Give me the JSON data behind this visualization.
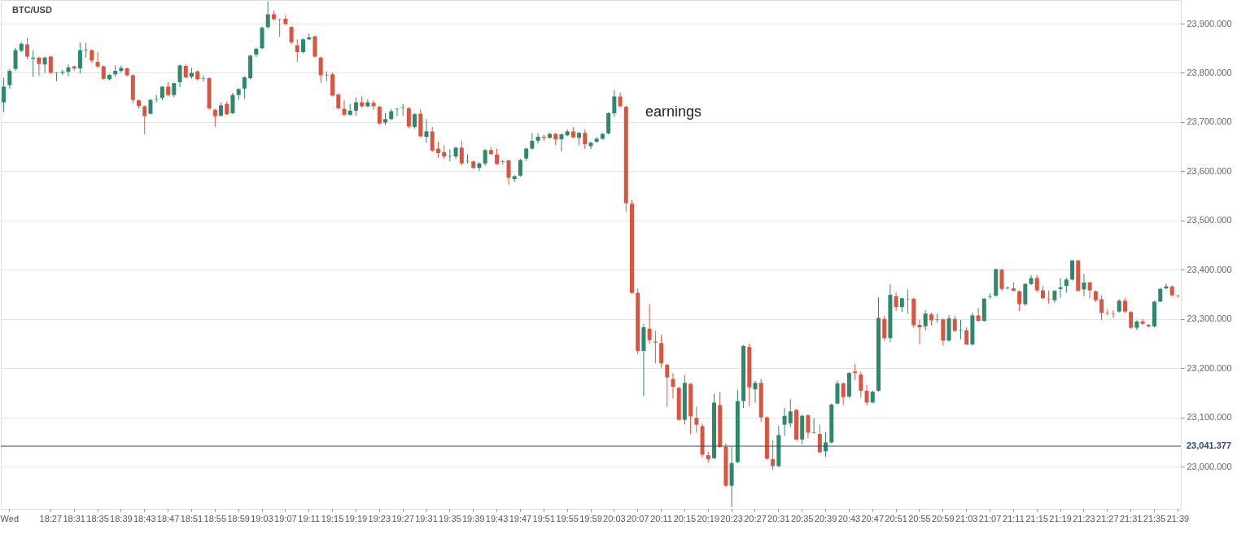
{
  "chart_data": {
    "type": "candlestick",
    "title": "BTC/USD",
    "annotations": [
      "earnings"
    ],
    "categories": [
      null,
      "Wed",
      null,
      null,
      null,
      null,
      null,
      null,
      "18:27",
      null,
      null,
      null,
      "18:31",
      null,
      null,
      null,
      "18:35",
      null,
      null,
      null,
      "18:39",
      null,
      null,
      null,
      "18:43",
      null,
      null,
      null,
      "18:47",
      null,
      null,
      null,
      "18:51",
      null,
      null,
      null,
      "18:55",
      null,
      null,
      null,
      "18:59",
      null,
      null,
      null,
      "19:03",
      null,
      null,
      null,
      "19:07",
      null,
      null,
      null,
      "19:11",
      null,
      null,
      null,
      "19:15",
      null,
      null,
      null,
      "19:19",
      null,
      null,
      null,
      "19:23",
      null,
      null,
      null,
      "19:27",
      null,
      null,
      null,
      "19:31",
      null,
      null,
      null,
      "19:35",
      null,
      null,
      null,
      "19:39",
      null,
      null,
      null,
      "19:43",
      null,
      null,
      null,
      "19:47",
      null,
      null,
      null,
      "19:51",
      null,
      null,
      null,
      "19:55",
      null,
      null,
      null,
      "19:59",
      null,
      null,
      null,
      "20:03",
      null,
      null,
      null,
      "20:07",
      null,
      null,
      null,
      "20:11",
      null,
      null,
      null,
      "20:15",
      null,
      null,
      null,
      "20:19",
      null,
      null,
      null,
      "20:23",
      null,
      null,
      null,
      "20:27",
      null,
      null,
      null,
      "20:31",
      null,
      null,
      null,
      "20:35",
      null,
      null,
      null,
      "20:39",
      null,
      null,
      null,
      "20:43",
      null,
      null,
      null,
      "20:47",
      null,
      null,
      null,
      "20:51",
      null,
      null,
      null,
      "20:55",
      null,
      null,
      null,
      "20:59",
      null,
      null,
      null,
      "21:03",
      null,
      null,
      null,
      "21:07",
      null,
      null,
      null,
      "21:11",
      null,
      null,
      null,
      "21:15",
      null,
      null,
      null,
      "21:19",
      null,
      null,
      null,
      "21:23",
      null,
      null,
      null,
      "21:27",
      null,
      null,
      null,
      "21:31",
      null,
      null,
      null,
      "21:35",
      null,
      null,
      null,
      "21:39"
    ],
    "ohlc": [
      [
        23740,
        23790,
        23720,
        23772
      ],
      [
        23775,
        23808,
        23768,
        23804
      ],
      [
        23808,
        23851,
        23804,
        23846
      ],
      [
        23845,
        23863,
        23842,
        23859
      ],
      [
        23858,
        23870,
        23828,
        23833
      ],
      [
        23829,
        23846,
        23792,
        23831
      ],
      [
        23831,
        23833,
        23794,
        23818
      ],
      [
        23817,
        23833,
        23800,
        23831
      ],
      [
        23833,
        23835,
        23798,
        23800
      ],
      [
        23800,
        23801,
        23783,
        23801
      ],
      [
        23800,
        23806,
        23796,
        23802
      ],
      [
        23802,
        23817,
        23793,
        23811
      ],
      [
        23813,
        23815,
        23804,
        23809
      ],
      [
        23809,
        23862,
        23799,
        23846
      ],
      [
        23846,
        23861,
        23831,
        23847
      ],
      [
        23846,
        23848,
        23820,
        23825
      ],
      [
        23822,
        23842,
        23810,
        23813
      ],
      [
        23813,
        23815,
        23786,
        23788
      ],
      [
        23787,
        23797,
        23785,
        23796
      ],
      [
        23797,
        23815,
        23792,
        23804
      ],
      [
        23804,
        23815,
        23800,
        23810
      ],
      [
        23809,
        23811,
        23793,
        23795
      ],
      [
        23795,
        23797,
        23738,
        23745
      ],
      [
        23744,
        23746,
        23728,
        23733
      ],
      [
        23732,
        23734,
        23675,
        23712
      ],
      [
        23717,
        23747,
        23715,
        23745
      ],
      [
        23746,
        23755,
        23740,
        23747
      ],
      [
        23749,
        23773,
        23744,
        23772
      ],
      [
        23772,
        23781,
        23753,
        23755
      ],
      [
        23755,
        23780,
        23750,
        23779
      ],
      [
        23781,
        23817,
        23771,
        23815
      ],
      [
        23814,
        23818,
        23789,
        23791
      ],
      [
        23792,
        23810,
        23788,
        23800
      ],
      [
        23803,
        23805,
        23785,
        23787
      ],
      [
        23788,
        23795,
        23782,
        23789
      ],
      [
        23789,
        23791,
        23725,
        23728
      ],
      [
        23725,
        23727,
        23690,
        23712
      ],
      [
        23713,
        23740,
        23711,
        23734
      ],
      [
        23737,
        23742,
        23714,
        23716
      ],
      [
        23718,
        23760,
        23716,
        23755
      ],
      [
        23755,
        23769,
        23745,
        23767
      ],
      [
        23768,
        23793,
        23747,
        23791
      ],
      [
        23789,
        23837,
        23787,
        23835
      ],
      [
        23837,
        23851,
        23832,
        23849
      ],
      [
        23850,
        23894,
        23848,
        23892
      ],
      [
        23893,
        23945,
        23889,
        23919
      ],
      [
        23919,
        23926,
        23907,
        23909
      ],
      [
        23909,
        23910,
        23873,
        23908
      ],
      [
        23910,
        23917,
        23897,
        23899
      ],
      [
        23893,
        23895,
        23858,
        23862
      ],
      [
        23856,
        23868,
        23822,
        23842
      ],
      [
        23842,
        23870,
        23840,
        23868
      ],
      [
        23868,
        23880,
        23866,
        23872
      ],
      [
        23874,
        23876,
        23831,
        23833
      ],
      [
        23831,
        23833,
        23780,
        23795
      ],
      [
        23795,
        23803,
        23783,
        23796
      ],
      [
        23797,
        23801,
        23752,
        23754
      ],
      [
        23756,
        23758,
        23726,
        23728
      ],
      [
        23727,
        23745,
        23712,
        23715
      ],
      [
        23715,
        23737,
        23713,
        23723
      ],
      [
        23723,
        23750,
        23713,
        23740
      ],
      [
        23740,
        23752,
        23730,
        23732
      ],
      [
        23732,
        23746,
        23730,
        23740
      ],
      [
        23739,
        23744,
        23725,
        23732
      ],
      [
        23731,
        23733,
        23695,
        23697
      ],
      [
        23699,
        23718,
        23694,
        23706
      ],
      [
        23706,
        23727,
        23704,
        23722
      ],
      [
        23726,
        23728,
        23712,
        23727
      ],
      [
        23728,
        23737,
        23712,
        23729
      ],
      [
        23728,
        23731,
        23688,
        23691
      ],
      [
        23690,
        23718,
        23687,
        23716
      ],
      [
        23717,
        23726,
        23669,
        23671
      ],
      [
        23670,
        23706,
        23658,
        23681
      ],
      [
        23681,
        23690,
        23640,
        23642
      ],
      [
        23646,
        23660,
        23627,
        23637
      ],
      [
        23639,
        23653,
        23625,
        23630
      ],
      [
        23630,
        23645,
        23620,
        23631
      ],
      [
        23630,
        23650,
        23625,
        23648
      ],
      [
        23648,
        23662,
        23612,
        23616
      ],
      [
        23620,
        23635,
        23616,
        23621
      ],
      [
        23620,
        23622,
        23603,
        23607
      ],
      [
        23607,
        23618,
        23601,
        23616
      ],
      [
        23616,
        23645,
        23611,
        23643
      ],
      [
        23643,
        23649,
        23633,
        23635
      ],
      [
        23634,
        23646,
        23613,
        23615
      ],
      [
        23619,
        23623,
        23614,
        23620
      ],
      [
        23622,
        23624,
        23573,
        23587
      ],
      [
        23584,
        23592,
        23578,
        23590
      ],
      [
        23591,
        23625,
        23589,
        23623
      ],
      [
        23626,
        23648,
        23621,
        23646
      ],
      [
        23646,
        23678,
        23644,
        23662
      ],
      [
        23662,
        23677,
        23656,
        23670
      ],
      [
        23670,
        23674,
        23662,
        23668
      ],
      [
        23668,
        23678,
        23666,
        23676
      ],
      [
        23676,
        23678,
        23653,
        23665
      ],
      [
        23665,
        23677,
        23640,
        23675
      ],
      [
        23673,
        23685,
        23671,
        23681
      ],
      [
        23681,
        23690,
        23667,
        23669
      ],
      [
        23668,
        23680,
        23653,
        23678
      ],
      [
        23678,
        23685,
        23645,
        23655
      ],
      [
        23651,
        23660,
        23645,
        23658
      ],
      [
        23660,
        23670,
        23658,
        23666
      ],
      [
        23666,
        23678,
        23664,
        23676
      ],
      [
        23677,
        23720,
        23675,
        23718
      ],
      [
        23718,
        23765,
        23710,
        23752
      ],
      [
        23752,
        23760,
        23730,
        23732
      ],
      [
        23731,
        23733,
        23518,
        23535
      ],
      [
        23534,
        23542,
        23351,
        23353
      ],
      [
        23353,
        23362,
        23228,
        23235
      ],
      [
        23235,
        23290,
        23143,
        23283
      ],
      [
        23280,
        23330,
        23249,
        23257
      ],
      [
        23254,
        23276,
        23210,
        23252
      ],
      [
        23251,
        23268,
        23201,
        23210
      ],
      [
        23207,
        23209,
        23121,
        23181
      ],
      [
        23178,
        23190,
        23138,
        23162
      ],
      [
        23160,
        23162,
        23093,
        23095
      ],
      [
        23095,
        23186,
        23086,
        23170
      ],
      [
        23168,
        23170,
        23066,
        23102
      ],
      [
        23099,
        23122,
        23069,
        23085
      ],
      [
        23082,
        23088,
        23018,
        23024
      ],
      [
        23023,
        23030,
        23008,
        23015
      ],
      [
        23017,
        23148,
        23015,
        23130
      ],
      [
        23125,
        23152,
        23038,
        23040
      ],
      [
        23040,
        23047,
        22959,
        22961
      ],
      [
        22961,
        23040,
        22918,
        23007
      ],
      [
        23009,
        23156,
        23007,
        23133
      ],
      [
        23133,
        23247,
        23119,
        23245
      ],
      [
        23243,
        23250,
        23123,
        23161
      ],
      [
        23157,
        23174,
        23130,
        23170
      ],
      [
        23170,
        23178,
        23091,
        23100
      ],
      [
        23100,
        23102,
        23014,
        23016
      ],
      [
        23015,
        23054,
        22993,
        23001
      ],
      [
        23001,
        23083,
        22999,
        23064
      ],
      [
        23085,
        23119,
        23062,
        23103
      ],
      [
        23088,
        23137,
        23080,
        23112
      ],
      [
        23115,
        23117,
        23053,
        23055
      ],
      [
        23055,
        23106,
        23045,
        23103
      ],
      [
        23104,
        23107,
        23058,
        23069
      ],
      [
        23068,
        23098,
        23067,
        23069
      ],
      [
        23066,
        23085,
        23027,
        23029
      ],
      [
        23031,
        23070,
        23019,
        23049
      ],
      [
        23049,
        23128,
        23047,
        23126
      ],
      [
        23128,
        23175,
        23126,
        23169
      ],
      [
        23169,
        23171,
        23125,
        23141
      ],
      [
        23142,
        23192,
        23140,
        23190
      ],
      [
        23193,
        23208,
        23176,
        23190
      ],
      [
        23187,
        23193,
        23140,
        23154
      ],
      [
        23154,
        23166,
        23124,
        23130
      ],
      [
        23130,
        23154,
        23129,
        23152
      ],
      [
        23154,
        23344,
        23152,
        23302
      ],
      [
        23300,
        23306,
        23256,
        23261
      ],
      [
        23261,
        23370,
        23252,
        23349
      ],
      [
        23346,
        23354,
        23316,
        23324
      ],
      [
        23324,
        23343,
        23314,
        23342
      ],
      [
        23340,
        23360,
        23311,
        23339
      ],
      [
        23341,
        23343,
        23282,
        23287
      ],
      [
        23288,
        23298,
        23248,
        23283
      ],
      [
        23285,
        23318,
        23276,
        23311
      ],
      [
        23309,
        23313,
        23287,
        23297
      ],
      [
        23298,
        23311,
        23292,
        23299
      ],
      [
        23299,
        23301,
        23246,
        23256
      ],
      [
        23256,
        23308,
        23254,
        23301
      ],
      [
        23300,
        23306,
        23273,
        23276
      ],
      [
        23277,
        23298,
        23259,
        23278
      ],
      [
        23277,
        23283,
        23247,
        23248
      ],
      [
        23248,
        23313,
        23246,
        23307
      ],
      [
        23307,
        23322,
        23294,
        23296
      ],
      [
        23296,
        23343,
        23294,
        23341
      ],
      [
        23345,
        23352,
        23341,
        23346
      ],
      [
        23347,
        23402,
        23345,
        23401
      ],
      [
        23400,
        23402,
        23357,
        23361
      ],
      [
        23362,
        23366,
        23360,
        23363
      ],
      [
        23362,
        23374,
        23356,
        23357
      ],
      [
        23356,
        23358,
        23316,
        23330
      ],
      [
        23330,
        23373,
        23326,
        23371
      ],
      [
        23371,
        23389,
        23369,
        23383
      ],
      [
        23383,
        23389,
        23354,
        23358
      ],
      [
        23358,
        23367,
        23340,
        23342
      ],
      [
        23341,
        23358,
        23331,
        23340
      ],
      [
        23338,
        23359,
        23333,
        23357
      ],
      [
        23361,
        23383,
        23343,
        23364
      ],
      [
        23367,
        23384,
        23353,
        23380
      ],
      [
        23380,
        23419,
        23378,
        23419
      ],
      [
        23419,
        23419,
        23357,
        23357
      ],
      [
        23360,
        23391,
        23346,
        23374
      ],
      [
        23374,
        23376,
        23342,
        23358
      ],
      [
        23356,
        23358,
        23335,
        23338
      ],
      [
        23340,
        23348,
        23298,
        23312
      ],
      [
        23312,
        23320,
        23308,
        23311
      ],
      [
        23311,
        23317,
        23302,
        23310
      ],
      [
        23315,
        23340,
        23313,
        23337
      ],
      [
        23337,
        23343,
        23312,
        23315
      ],
      [
        23314,
        23316,
        23280,
        23282
      ],
      [
        23282,
        23297,
        23277,
        23295
      ],
      [
        23295,
        23300,
        23288,
        23290
      ],
      [
        23288,
        23290,
        23283,
        23285
      ],
      [
        23285,
        23337,
        23283,
        23335
      ],
      [
        23335,
        23363,
        23335,
        23361
      ],
      [
        23362,
        23372,
        23360,
        23366
      ],
      [
        23366,
        23368,
        23346,
        23348
      ],
      [
        23347,
        23349,
        23343,
        23346
      ]
    ],
    "colors": [
      "#2b8a6e",
      "#2b8a6e",
      "#2b8a6e",
      "#2b8a6e",
      "#d9553f",
      "#2b8a6e",
      "#d9553f",
      "#2b8a6e",
      "#d9553f",
      "#2b8a6e",
      "#2b8a6e",
      "#2b8a6e",
      "#d9553f",
      "#2b8a6e",
      "#2b8a6e",
      "#d9553f",
      "#d9553f",
      "#d9553f",
      "#2b8a6e",
      "#2b8a6e",
      "#2b8a6e",
      "#d9553f",
      "#d9553f",
      "#d9553f",
      "#d9553f",
      "#2b8a6e",
      "#2b8a6e",
      "#2b8a6e",
      "#d9553f",
      "#2b8a6e",
      "#2b8a6e",
      "#d9553f",
      "#2b8a6e",
      "#d9553f",
      "#2b8a6e",
      "#d9553f",
      "#d9553f",
      "#2b8a6e",
      "#d9553f",
      "#2b8a6e",
      "#2b8a6e",
      "#2b8a6e",
      "#2b8a6e",
      "#2b8a6e",
      "#2b8a6e",
      "#2b8a6e",
      "#d9553f",
      "#d9553f",
      "#d9553f",
      "#d9553f",
      "#d9553f",
      "#2b8a6e",
      "#2b8a6e",
      "#d9553f",
      "#d9553f",
      "#2b8a6e",
      "#d9553f",
      "#d9553f",
      "#d9553f",
      "#2b8a6e",
      "#2b8a6e",
      "#d9553f",
      "#2b8a6e",
      "#d9553f",
      "#d9553f",
      "#2b8a6e",
      "#2b8a6e",
      "#2b8a6e",
      "#2b8a6e",
      "#d9553f",
      "#2b8a6e",
      "#d9553f",
      "#2b8a6e",
      "#d9553f",
      "#d9553f",
      "#d9553f",
      "#2b8a6e",
      "#2b8a6e",
      "#d9553f",
      "#2b8a6e",
      "#d9553f",
      "#2b8a6e",
      "#2b8a6e",
      "#d9553f",
      "#d9553f",
      "#2b8a6e",
      "#d9553f",
      "#2b8a6e",
      "#2b8a6e",
      "#2b8a6e",
      "#2b8a6e",
      "#2b8a6e",
      "#d9553f",
      "#2b8a6e",
      "#d9553f",
      "#2b8a6e",
      "#2b8a6e",
      "#d9553f",
      "#2b8a6e",
      "#d9553f",
      "#2b8a6e",
      "#2b8a6e",
      "#2b8a6e",
      "#2b8a6e",
      "#2b8a6e",
      "#d9553f",
      "#d9553f",
      "#d9553f",
      "#d9553f",
      "#2b8a6e",
      "#d9553f",
      "#d9553f",
      "#d9553f",
      "#d9553f",
      "#d9553f",
      "#d9553f",
      "#2b8a6e",
      "#d9553f",
      "#d9553f",
      "#d9553f",
      "#d9553f",
      "#2b8a6e",
      "#d9553f",
      "#d9553f",
      "#2b8a6e",
      "#2b8a6e",
      "#2b8a6e",
      "#d9553f",
      "#2b8a6e",
      "#d9553f",
      "#d9553f",
      "#d9553f",
      "#2b8a6e",
      "#2b8a6e",
      "#2b8a6e",
      "#d9553f",
      "#2b8a6e",
      "#d9553f",
      "#2b8a6e",
      "#d9553f",
      "#2b8a6e",
      "#2b8a6e",
      "#2b8a6e",
      "#d9553f",
      "#2b8a6e",
      "#d9553f",
      "#d9553f",
      "#d9553f",
      "#2b8a6e",
      "#2b8a6e",
      "#d9553f",
      "#2b8a6e",
      "#d9553f",
      "#2b8a6e",
      "#d9553f",
      "#d9553f",
      "#d9553f",
      "#2b8a6e",
      "#d9553f",
      "#2b8a6e",
      "#d9553f",
      "#2b8a6e",
      "#d9553f",
      "#2b8a6e",
      "#d9553f",
      "#2b8a6e",
      "#d9553f",
      "#2b8a6e",
      "#2b8a6e",
      "#2b8a6e",
      "#d9553f",
      "#2b8a6e",
      "#d9553f",
      "#d9553f",
      "#2b8a6e",
      "#2b8a6e",
      "#d9553f",
      "#d9553f",
      "#d9553f",
      "#2b8a6e",
      "#2b8a6e",
      "#2b8a6e",
      "#2b8a6e",
      "#d9553f",
      "#2b8a6e",
      "#d9553f",
      "#d9553f",
      "#d9553f",
      "#d9553f",
      "#d9553f",
      "#2b8a6e",
      "#d9553f",
      "#d9553f",
      "#2b8a6e",
      "#d9553f",
      "#d9553f",
      "#2b8a6e",
      "#2b8a6e",
      "#2b8a6e",
      "#d9553f",
      "#d9553f"
    ],
    "ylim": [
      22914,
      23948
    ],
    "yticks": [
      {
        "value": 23000,
        "label": "23,000.000"
      },
      {
        "value": 23100,
        "label": "23,100.000"
      },
      {
        "value": 23200,
        "label": "23,200.000"
      },
      {
        "value": 23300,
        "label": "23,300.000"
      },
      {
        "value": 23400,
        "label": "23,400.000"
      },
      {
        "value": 23500,
        "label": "23,500.000"
      },
      {
        "value": 23600,
        "label": "23,600.000"
      },
      {
        "value": 23700,
        "label": "23,700.000"
      },
      {
        "value": 23800,
        "label": "23,800.000"
      },
      {
        "value": 23900,
        "label": "23,900.000"
      }
    ],
    "ref_lines": [
      {
        "axis": "y",
        "value": 23041.377,
        "label": "23,041.377",
        "color": "#2c4870"
      }
    ],
    "grid": "y"
  }
}
